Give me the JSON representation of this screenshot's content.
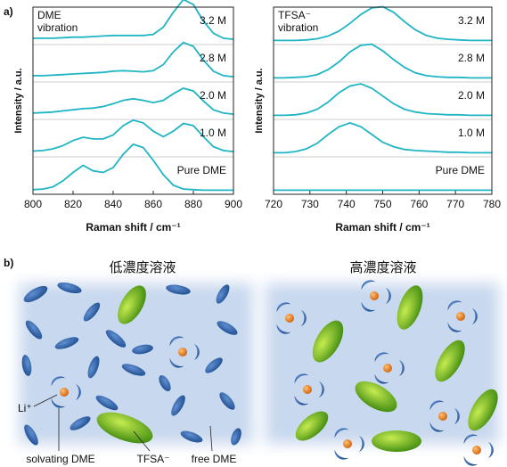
{
  "panel_labels": [
    "a)",
    "b)"
  ],
  "chart_data": [
    {
      "type": "line",
      "xlabel": "Raman shift / cm⁻¹",
      "ylabel": "Intensity / a.u.",
      "annotation": [
        "DME",
        "vibration"
      ],
      "x": [
        800,
        805,
        810,
        815,
        820,
        825,
        830,
        835,
        840,
        845,
        850,
        855,
        860,
        865,
        870,
        875,
        880,
        885,
        890,
        895,
        900
      ],
      "xlim": [
        800,
        900
      ],
      "xticks": [
        800,
        820,
        840,
        860,
        880,
        900
      ],
      "ylim": [
        0,
        1
      ],
      "series": [
        {
          "name": "Pure DME",
          "color": "#1fb5c4",
          "values": [
            0.02,
            0.03,
            0.07,
            0.18,
            0.33,
            0.46,
            0.36,
            0.33,
            0.42,
            0.66,
            0.84,
            0.78,
            0.55,
            0.29,
            0.1,
            0.03,
            0.02,
            0.01,
            0.01,
            0.01,
            0.01
          ]
        },
        {
          "name": "1.0 M",
          "color": "#1fb5c4",
          "values": [
            0.04,
            0.05,
            0.08,
            0.14,
            0.23,
            0.29,
            0.26,
            0.26,
            0.33,
            0.5,
            0.6,
            0.55,
            0.4,
            0.3,
            0.4,
            0.54,
            0.5,
            0.3,
            0.12,
            0.05,
            0.03
          ]
        },
        {
          "name": "2.0 M",
          "color": "#1fb5c4",
          "values": [
            0.05,
            0.06,
            0.07,
            0.09,
            0.11,
            0.13,
            0.14,
            0.17,
            0.22,
            0.28,
            0.31,
            0.28,
            0.24,
            0.28,
            0.4,
            0.5,
            0.45,
            0.27,
            0.11,
            0.05,
            0.03
          ]
        },
        {
          "name": "2.8 M",
          "color": "#1fb5c4",
          "values": [
            0.05,
            0.05,
            0.06,
            0.07,
            0.08,
            0.09,
            0.1,
            0.11,
            0.13,
            0.14,
            0.13,
            0.12,
            0.14,
            0.25,
            0.48,
            0.65,
            0.58,
            0.33,
            0.13,
            0.05,
            0.03
          ]
        },
        {
          "name": "3.2 M",
          "color": "#1fb5c4",
          "values": [
            0.05,
            0.05,
            0.05,
            0.06,
            0.07,
            0.07,
            0.08,
            0.09,
            0.1,
            0.1,
            0.1,
            0.1,
            0.12,
            0.25,
            0.52,
            0.75,
            0.66,
            0.36,
            0.14,
            0.05,
            0.03
          ]
        }
      ]
    },
    {
      "type": "line",
      "xlabel": "Raman shift / cm⁻¹",
      "ylabel": "Intensity / a.u.",
      "annotation": [
        "TFSA⁻",
        "vibration"
      ],
      "x": [
        720,
        723,
        726,
        729,
        732,
        735,
        738,
        741,
        744,
        747,
        750,
        753,
        756,
        759,
        762,
        765,
        768,
        771,
        774,
        777,
        780
      ],
      "xlim": [
        720,
        780
      ],
      "xticks": [
        720,
        730,
        740,
        750,
        760,
        770,
        780
      ],
      "ylim": [
        0,
        1
      ],
      "series": [
        {
          "name": "Pure DME",
          "color": "#1fb5c4",
          "values": [
            0.01,
            0.01,
            0.01,
            0.01,
            0.01,
            0.01,
            0.01,
            0.01,
            0.01,
            0.01,
            0.01,
            0.01,
            0.01,
            0.01,
            0.01,
            0.01,
            0.01,
            0.01,
            0.01,
            0.01,
            0.01
          ]
        },
        {
          "name": "1.0 M",
          "color": "#1fb5c4",
          "values": [
            0.01,
            0.01,
            0.03,
            0.08,
            0.18,
            0.34,
            0.48,
            0.55,
            0.48,
            0.34,
            0.2,
            0.12,
            0.07,
            0.05,
            0.04,
            0.03,
            0.02,
            0.02,
            0.01,
            0.01,
            0.01
          ]
        },
        {
          "name": "2.0 M",
          "color": "#1fb5c4",
          "values": [
            0.01,
            0.01,
            0.02,
            0.05,
            0.12,
            0.25,
            0.42,
            0.54,
            0.58,
            0.5,
            0.36,
            0.22,
            0.12,
            0.07,
            0.04,
            0.03,
            0.02,
            0.02,
            0.01,
            0.01,
            0.01
          ]
        },
        {
          "name": "2.8 M",
          "color": "#1fb5c4",
          "values": [
            0.01,
            0.01,
            0.02,
            0.03,
            0.07,
            0.16,
            0.3,
            0.48,
            0.6,
            0.62,
            0.5,
            0.34,
            0.2,
            0.1,
            0.05,
            0.03,
            0.02,
            0.02,
            0.01,
            0.01,
            0.01
          ]
        },
        {
          "name": "3.2 M",
          "color": "#1fb5c4",
          "values": [
            0.01,
            0.01,
            0.01,
            0.02,
            0.04,
            0.09,
            0.18,
            0.32,
            0.48,
            0.6,
            0.62,
            0.52,
            0.35,
            0.2,
            0.1,
            0.05,
            0.03,
            0.02,
            0.01,
            0.01,
            0.01
          ]
        }
      ]
    }
  ],
  "diagram": {
    "titles": [
      "低濃度溶液",
      "高濃度溶液"
    ],
    "labels": {
      "li": "Li⁺",
      "solvating": "solvating DME",
      "anion": "TFSA⁻",
      "free": "free DME"
    }
  }
}
